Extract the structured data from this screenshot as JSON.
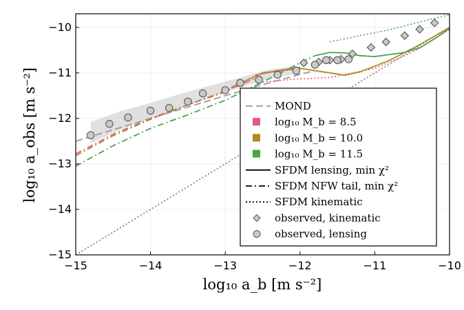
{
  "chart_data": {
    "type": "line",
    "xlabel": "log₁₀ a_b [m s⁻²]",
    "ylabel": "log₁₀ a_obs [m s⁻²]",
    "xlim": [
      -15,
      -10
    ],
    "ylim": [
      -15,
      -9.7
    ],
    "x_ticks": [
      -15,
      -14,
      -13,
      -12,
      -11,
      -10
    ],
    "y_ticks": [
      -15,
      -14,
      -13,
      -12,
      -11,
      -10
    ],
    "x_tick_labels": [
      "−15",
      "−14",
      "−13",
      "−12",
      "−11",
      "−10"
    ],
    "y_tick_labels": [
      "−15",
      "−14",
      "−13",
      "−12",
      "−11",
      "−10"
    ],
    "grid": true,
    "legend_position": "lower-right",
    "colors": {
      "mond": "#999999",
      "mb85": "#e0588a",
      "mb100": "#b28a21",
      "mb115": "#46a546",
      "unity": "#777777",
      "band": "#d8d8d8",
      "marker_fill": "#c9c9c9"
    },
    "series": [
      {
        "name": "MOND",
        "style": "dashed",
        "color": "#999999",
        "x": [
          -15,
          -14.5,
          -14,
          -13.5,
          -13,
          -12.5,
          -12,
          -11.8
        ],
        "y": [
          -12.5,
          -12.25,
          -12.0,
          -11.75,
          -11.5,
          -11.26,
          -11.03,
          -10.95
        ]
      },
      {
        "name": "unity (a_obs = a_b)",
        "style": "dotted",
        "color": "#777777",
        "x": [
          -15,
          -10
        ],
        "y": [
          -15,
          -10
        ]
      },
      {
        "name": "log₁₀ M_b = 8.5, lensing",
        "style": "solid",
        "color": "#e0588a",
        "x": [
          -12.6,
          -12.3,
          -12.0
        ],
        "y": [
          -11.05,
          -10.95,
          -10.88
        ]
      },
      {
        "name": "log₁₀ M_b = 8.5, NFW tail",
        "style": "dashdot",
        "color": "#e0588a",
        "x": [
          -15,
          -14.5,
          -14,
          -13.5,
          -13,
          -12.6
        ],
        "y": [
          -12.78,
          -12.35,
          -12.0,
          -11.7,
          -11.4,
          -11.12
        ]
      },
      {
        "name": "log₁₀ M_b = 8.5, kinematic",
        "style": "dotted",
        "color": "#e0588a",
        "x": [
          -12.5,
          -12.1,
          -11.6,
          -11.0,
          -10.5,
          -10.0
        ],
        "y": [
          -11.2,
          -11.14,
          -11.1,
          -10.9,
          -10.55,
          -10.05
        ]
      },
      {
        "name": "log₁₀ M_b = 10.0, lensing",
        "style": "solid",
        "color": "#b28a21",
        "x": [
          -12.9,
          -12.5,
          -12.0,
          -11.6,
          -11.4,
          -11.2,
          -10.8,
          -10.4,
          -10.0
        ],
        "y": [
          -11.3,
          -11.0,
          -10.9,
          -11.0,
          -11.05,
          -10.98,
          -10.72,
          -10.38,
          -10.0
        ]
      },
      {
        "name": "log₁₀ M_b = 10.0, NFW tail",
        "style": "dashdot",
        "color": "#b28a21",
        "x": [
          -15,
          -14.5,
          -14,
          -13.5,
          -13,
          -12.9
        ],
        "y": [
          -12.82,
          -12.38,
          -12.02,
          -11.7,
          -11.42,
          -11.3
        ]
      },
      {
        "name": "log₁₀ M_b = 11.5, lensing",
        "style": "solid",
        "color": "#46a546",
        "x": [
          -11.8,
          -11.6,
          -11.4,
          -11.2,
          -11.0,
          -10.6,
          -10.4,
          -10.2,
          -10.0
        ],
        "y": [
          -10.62,
          -10.55,
          -10.56,
          -10.62,
          -10.64,
          -10.55,
          -10.45,
          -10.25,
          -10.02
        ]
      },
      {
        "name": "log₁₀ M_b = 11.5, NFW tail",
        "style": "dashdot",
        "color": "#46a546",
        "x": [
          -15,
          -14.5,
          -14,
          -13.5,
          -13,
          -12.5,
          -12.0,
          -11.8
        ],
        "y": [
          -13.05,
          -12.6,
          -12.22,
          -11.92,
          -11.6,
          -11.2,
          -10.78,
          -10.62
        ]
      },
      {
        "name": "log₁₀ M_b = 11.5, kinematic",
        "style": "dotted",
        "color": "#46a546",
        "x": [
          -11.6,
          -11.2,
          -10.8,
          -10.4,
          -10.0
        ],
        "y": [
          -10.32,
          -10.18,
          -10.05,
          -9.88,
          -9.72
        ]
      },
      {
        "name": "observed, kinematic",
        "style": "marker-diamond",
        "color": "#999999",
        "x": [
          -11.95,
          -11.75,
          -11.6,
          -11.45,
          -11.3,
          -11.05,
          -10.85,
          -10.6,
          -10.4,
          -10.2
        ],
        "y": [
          -10.78,
          -10.76,
          -10.72,
          -10.7,
          -10.58,
          -10.44,
          -10.32,
          -10.18,
          -10.04,
          -9.9
        ]
      },
      {
        "name": "observed, lensing",
        "style": "marker-circle",
        "color": "#999999",
        "x": [
          -14.8,
          -14.55,
          -14.3,
          -14.0,
          -13.75,
          -13.5,
          -13.3,
          -13.0,
          -12.8,
          -12.55,
          -12.3,
          -12.05,
          -11.8,
          -11.65,
          -11.5,
          -11.35
        ],
        "y": [
          -12.37,
          -12.12,
          -11.98,
          -11.83,
          -11.77,
          -11.63,
          -11.45,
          -11.38,
          -11.22,
          -11.15,
          -11.04,
          -10.95,
          -10.82,
          -10.72,
          -10.72,
          -10.7
        ]
      }
    ],
    "band": {
      "name": "observed lensing uncertainty",
      "x": [
        -14.8,
        -14.4,
        -14.0,
        -13.6,
        -13.2,
        -12.8,
        -12.4,
        -12.05
      ],
      "lower": [
        -12.55,
        -12.25,
        -11.98,
        -11.78,
        -11.52,
        -11.32,
        -11.12,
        -11.02
      ],
      "upper": [
        -12.08,
        -11.84,
        -11.66,
        -11.46,
        -11.28,
        -11.1,
        -10.92,
        -10.85
      ]
    },
    "legend": [
      {
        "label": "MOND",
        "kind": "dashed",
        "color": "#999999"
      },
      {
        "label": "log₁₀ M_b = 8.5",
        "kind": "swatch",
        "color": "#e0588a"
      },
      {
        "label": "log₁₀ M_b = 10.0",
        "kind": "swatch",
        "color": "#b28a21"
      },
      {
        "label": "log₁₀ M_b = 11.5",
        "kind": "swatch",
        "color": "#46a546"
      },
      {
        "label": "SFDM lensing, min χ²",
        "kind": "solid",
        "color": "#000000"
      },
      {
        "label": "SFDM NFW tail, min χ²",
        "kind": "dashdot",
        "color": "#000000"
      },
      {
        "label": "SFDM kinematic",
        "kind": "dotted",
        "color": "#000000"
      },
      {
        "label": "observed,  kinematic",
        "kind": "diamond",
        "color": "#999999"
      },
      {
        "label": "observed,  lensing",
        "kind": "circle",
        "color": "#999999"
      }
    ]
  }
}
